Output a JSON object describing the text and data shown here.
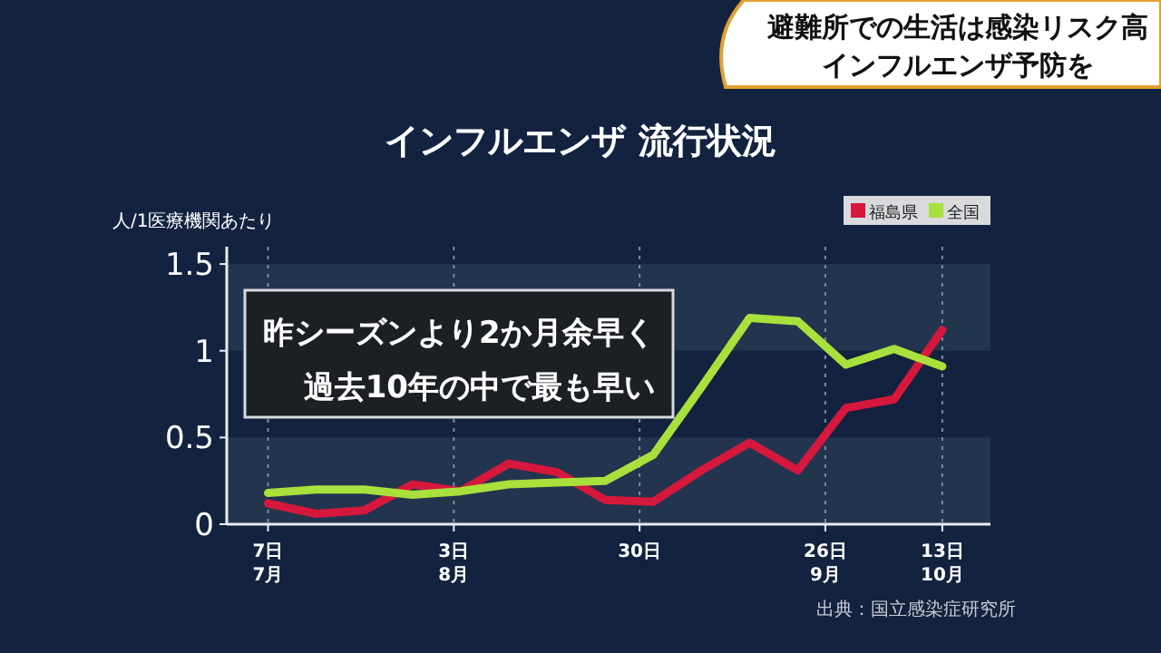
{
  "chart_data": {
    "type": "line",
    "title": "インフルエンザ 流行状況",
    "ylabel": "人/1医療機関あたり",
    "annotations": [
      "避難所での生活は感染リスク高",
      "インフルエンザ予防を",
      "昨シーズンより2か月余早く",
      "過去10年の中で最も早い",
      "出典：国立感染症研究所"
    ],
    "bands": [
      {
        "axis": "y",
        "from": 0,
        "to": 0.5,
        "color": "#23344f"
      },
      {
        "axis": "y",
        "from": 1,
        "to": 1.5,
        "color": "#23344f"
      }
    ],
    "x": [
      "--07-07",
      "--07-14",
      "--07-21",
      "--07-28",
      "--08-04",
      "--08-11",
      "--08-18",
      "--08-25",
      "--09-01",
      "--09-08",
      "--09-15",
      "--09-22",
      "--09-29",
      "--10-06",
      "--10-13"
    ],
    "series": [
      {
        "name": "福島県",
        "color": "#d6183c",
        "values": [
          0.12,
          0.06,
          0.08,
          0.23,
          0.19,
          0.35,
          0.3,
          0.14,
          0.13,
          0.31,
          0.47,
          0.31,
          0.67,
          0.72,
          1.12
        ]
      },
      {
        "name": "全国",
        "color": "#a8e03c",
        "values": [
          0.18,
          0.2,
          0.2,
          0.17,
          0.19,
          0.23,
          0.24,
          0.25,
          0.4,
          0.79,
          1.19,
          1.17,
          0.92,
          1.01,
          0.91
        ]
      }
    ],
    "xlim": [
      "--07-01",
      "--10-20"
    ],
    "xticks": [
      {
        "value": "--07-07",
        "label": "7日\n7月"
      },
      {
        "value": "--08-03",
        "label": "3日\n8月"
      },
      {
        "value": "--08-30",
        "label": "30日"
      },
      {
        "value": "--09-26",
        "label": "26日\n9月"
      },
      {
        "value": "--10-13",
        "label": "13日\n10月"
      }
    ],
    "ylim": [
      0,
      1.6
    ],
    "yticks": [
      0,
      0.5,
      1,
      1.5
    ],
    "grid": "x",
    "legend": "top right",
    "marker": "none",
    "line_style": "solid"
  }
}
